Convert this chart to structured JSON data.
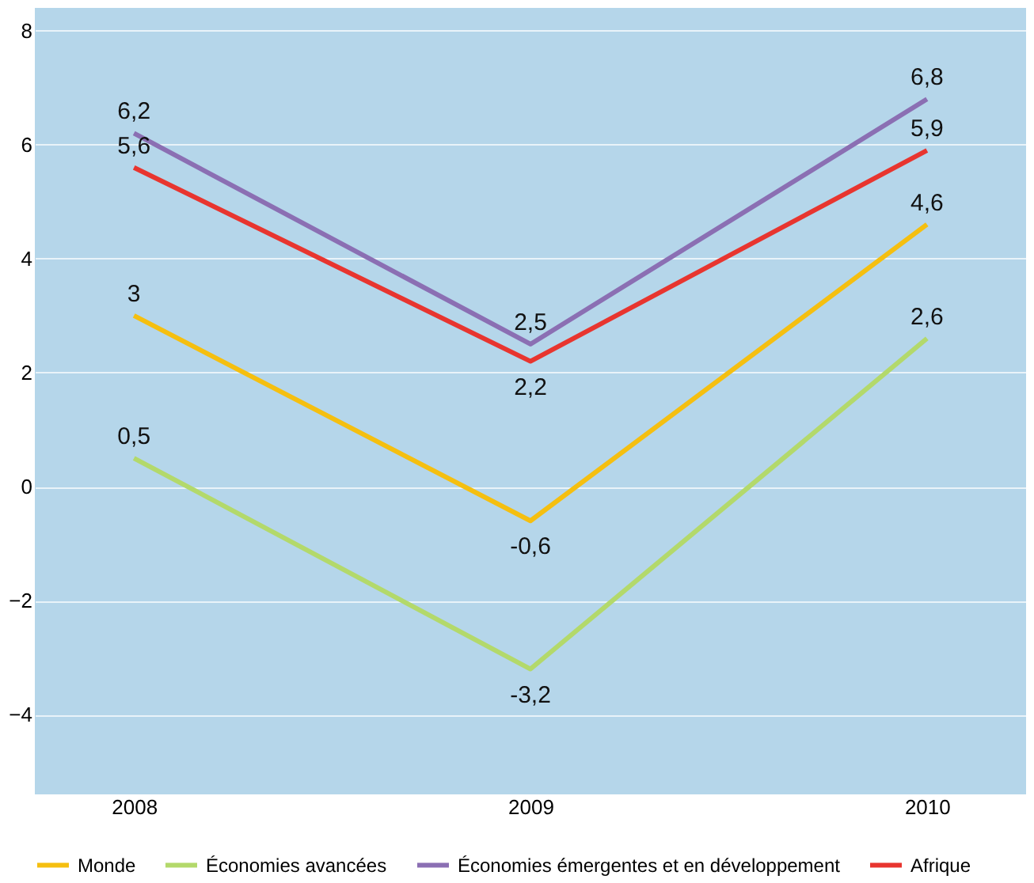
{
  "chart_data": {
    "type": "line",
    "categories": [
      "2008",
      "2009",
      "2010"
    ],
    "series": [
      {
        "name": "Monde",
        "color": "#f5bf10",
        "values": [
          3,
          -0.6,
          4.6
        ],
        "value_labels": [
          "3",
          "-0,6",
          "4,6"
        ]
      },
      {
        "name": "Économies avancées",
        "color": "#b3d96b",
        "values": [
          0.5,
          -3.2,
          2.6
        ],
        "value_labels": [
          "0,5",
          "-3,2",
          "2,6"
        ]
      },
      {
        "name": "Économies émergentes et en développement",
        "color": "#8b6fb3",
        "values": [
          6.2,
          2.5,
          6.8
        ],
        "value_labels": [
          "6,2",
          "2,5",
          "6,8"
        ]
      },
      {
        "name": "Afrique",
        "color": "#e8352f",
        "values": [
          5.6,
          2.2,
          5.9
        ],
        "value_labels": [
          "5,6",
          "2,2",
          "5,9"
        ]
      }
    ],
    "ylim": [
      -5.4,
      8.4
    ],
    "yticks": [
      -4,
      -2,
      0,
      2,
      4,
      6,
      8
    ],
    "grid": "y",
    "legend": "bottom",
    "marker": "none",
    "line_style": "solid"
  }
}
